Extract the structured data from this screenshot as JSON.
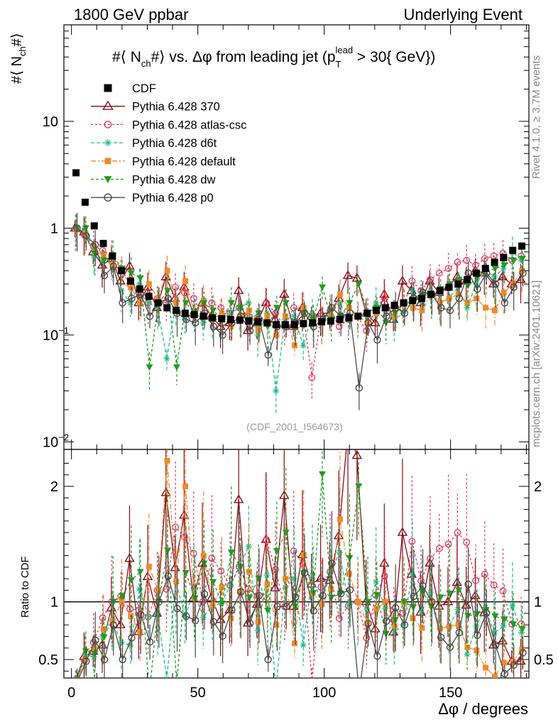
{
  "header": {
    "left": "1800 GeV ppbar",
    "right": "Underlying Event"
  },
  "side_labels": {
    "rivet": "Rivet 4.1.0, ≥ 3.7M events",
    "mcplots": "mcplots.cern.ch [arXiv:2401.10621]"
  },
  "watermark": "(CDF_2001_I564673)",
  "colors": {
    "cdf": "#000000",
    "p370": "#8b0a1c",
    "atlas": "#e8315b",
    "d6t": "#1fbf8f",
    "default": "#f08a2a",
    "dw": "#1f9e1f",
    "p0": "#4a4a4a"
  },
  "chart_data": [
    {
      "type": "line",
      "panel": "main",
      "title": "#⟨ N_ch#⟩ vs. Δφ from leading jet  (p_T^lead > 30{ GeV})",
      "title_parts": {
        "pre": "#⟨ N",
        "sub1": "ch",
        "mid": "#⟩ vs. Δφ from leading jet  (p",
        "sub2": "T",
        "sup2": "lead",
        "post": " > 30{ GeV})"
      },
      "ylabel": "#⟨ N_ch#⟩",
      "ylabel_parts": {
        "pre": "#⟨ N",
        "sub": "ch",
        "post": "#⟩"
      },
      "yscale": "log",
      "ylim": [
        0.0085,
        80
      ],
      "xlim": [
        -3,
        181
      ],
      "yticks": [
        {
          "v": 0.01,
          "label": "10",
          "exp": "−2"
        },
        {
          "v": 0.1,
          "label": "10",
          "exp": "−1"
        },
        {
          "v": 1,
          "label": "1",
          "exp": ""
        },
        {
          "v": 10,
          "label": "10",
          "exp": ""
        }
      ],
      "legend_position": "top-left",
      "x": [
        1.8,
        5.4,
        9.0,
        12.6,
        16.2,
        19.8,
        23.4,
        27.0,
        30.6,
        34.2,
        37.8,
        41.4,
        45.0,
        48.6,
        52.2,
        55.8,
        59.4,
        63.0,
        66.6,
        70.2,
        73.8,
        77.4,
        81.0,
        84.6,
        88.2,
        91.8,
        95.4,
        99.0,
        102.6,
        106.2,
        109.8,
        113.4,
        117.0,
        120.6,
        124.2,
        127.8,
        131.4,
        135.0,
        138.6,
        142.2,
        145.8,
        149.4,
        153.0,
        156.6,
        160.2,
        163.8,
        167.4,
        171.0,
        174.6,
        178.2
      ],
      "series": [
        {
          "name": "CDF",
          "key": "cdf",
          "marker": "square",
          "dash": "none",
          "values": [
            3.3,
            1.75,
            1.05,
            0.72,
            0.55,
            0.4,
            0.32,
            0.27,
            0.23,
            0.2,
            0.18,
            0.17,
            0.16,
            0.155,
            0.15,
            0.145,
            0.142,
            0.14,
            0.138,
            0.135,
            0.133,
            0.13,
            0.125,
            0.125,
            0.125,
            0.128,
            0.13,
            0.133,
            0.135,
            0.14,
            0.145,
            0.15,
            0.16,
            0.17,
            0.18,
            0.19,
            0.2,
            0.21,
            0.22,
            0.24,
            0.26,
            0.28,
            0.3,
            0.33,
            0.38,
            0.42,
            0.48,
            0.53,
            0.62,
            0.68
          ]
        },
        {
          "name": "Pythia 6.428 370",
          "key": "p370",
          "marker": "triangle",
          "dash": "none",
          "values": [
            1.0,
            0.92,
            0.6,
            0.45,
            0.52,
            0.32,
            0.44,
            0.2,
            0.28,
            0.18,
            0.35,
            0.22,
            0.28,
            0.16,
            0.2,
            0.15,
            0.12,
            0.13,
            0.26,
            0.11,
            0.13,
            0.2,
            0.14,
            0.24,
            0.12,
            0.18,
            0.15,
            0.16,
            0.16,
            0.22,
            0.36,
            0.34,
            0.16,
            0.13,
            0.24,
            0.14,
            0.32,
            0.26,
            0.2,
            0.32,
            0.25,
            0.28,
            0.35,
            0.32,
            0.4,
            0.38,
            0.3,
            0.35,
            0.3,
            0.33
          ]
        },
        {
          "name": "Pythia 6.428 atlas-csc",
          "key": "atlas",
          "marker": "circle",
          "dash": "3,3",
          "values": [
            0.98,
            0.86,
            0.68,
            0.62,
            0.55,
            0.42,
            0.3,
            0.25,
            0.2,
            0.22,
            0.2,
            0.28,
            0.25,
            0.22,
            0.15,
            0.2,
            0.18,
            0.16,
            0.18,
            0.15,
            0.14,
            0.2,
            0.16,
            0.12,
            0.18,
            0.17,
            0.04,
            0.15,
            0.17,
            0.12,
            0.14,
            0.15,
            0.11,
            0.18,
            0.22,
            0.16,
            0.18,
            0.32,
            0.26,
            0.33,
            0.38,
            0.42,
            0.48,
            0.5,
            0.45,
            0.52,
            0.55,
            0.58,
            0.5,
            0.55
          ]
        },
        {
          "name": "Pythia 6.428 d6t",
          "key": "d6t",
          "marker": "star",
          "dash": "5,3",
          "values": [
            0.98,
            0.95,
            0.55,
            0.5,
            0.46,
            0.26,
            0.2,
            0.3,
            0.2,
            0.18,
            0.06,
            0.2,
            0.14,
            0.17,
            0.13,
            0.14,
            0.14,
            0.16,
            0.18,
            0.2,
            0.1,
            0.16,
            0.03,
            0.14,
            0.15,
            0.08,
            0.16,
            0.13,
            0.17,
            0.2,
            0.14,
            0.15,
            0.15,
            0.2,
            0.17,
            0.14,
            0.16,
            0.26,
            0.2,
            0.26,
            0.2,
            0.22,
            0.28,
            0.18,
            0.3,
            0.4,
            0.35,
            0.42,
            0.6,
            0.5
          ]
        },
        {
          "name": "Pythia 6.428 default",
          "key": "default",
          "marker": "squarefill",
          "dash": "7,3,2,3",
          "values": [
            0.98,
            0.9,
            0.62,
            0.55,
            0.46,
            0.4,
            0.28,
            0.2,
            0.3,
            0.22,
            0.4,
            0.2,
            0.32,
            0.16,
            0.21,
            0.14,
            0.16,
            0.12,
            0.15,
            0.17,
            0.11,
            0.15,
            0.1,
            0.15,
            0.08,
            0.18,
            0.14,
            0.13,
            0.15,
            0.24,
            0.18,
            0.15,
            0.13,
            0.16,
            0.18,
            0.15,
            0.2,
            0.18,
            0.17,
            0.24,
            0.2,
            0.22,
            0.24,
            0.2,
            0.22,
            0.18,
            0.17,
            0.25,
            0.3,
            0.4
          ]
        },
        {
          "name": "Pythia 6.428 dw",
          "key": "dw",
          "marker": "triangledown",
          "dash": "4,3",
          "values": [
            1.0,
            1.0,
            0.58,
            0.5,
            0.55,
            0.42,
            0.38,
            0.34,
            0.05,
            0.2,
            0.26,
            0.05,
            0.2,
            0.16,
            0.2,
            0.17,
            0.14,
            0.2,
            0.18,
            0.14,
            0.16,
            0.12,
            0.18,
            0.2,
            0.12,
            0.16,
            0.14,
            0.28,
            0.14,
            0.15,
            0.2,
            0.3,
            0.16,
            0.18,
            0.13,
            0.16,
            0.2,
            0.2,
            0.24,
            0.23,
            0.27,
            0.3,
            0.33,
            0.29,
            0.34,
            0.39,
            0.42,
            0.45,
            0.5,
            0.52
          ]
        },
        {
          "name": "Pythia 6.428 p0",
          "key": "p0",
          "marker": "circleopen",
          "dash": "none",
          "values": [
            1.0,
            0.85,
            0.7,
            0.36,
            0.44,
            0.2,
            0.22,
            0.24,
            0.15,
            0.2,
            0.22,
            0.16,
            0.14,
            0.13,
            0.16,
            0.12,
            0.1,
            0.13,
            0.15,
            0.11,
            0.14,
            0.065,
            0.12,
            0.12,
            0.13,
            0.16,
            0.12,
            0.14,
            0.18,
            0.15,
            0.16,
            0.032,
            0.13,
            0.09,
            0.15,
            0.18,
            0.16,
            0.22,
            0.25,
            0.24,
            0.18,
            0.17,
            0.22,
            0.38,
            0.27,
            0.38,
            0.3,
            0.2,
            0.28,
            0.38
          ]
        }
      ]
    },
    {
      "type": "line",
      "panel": "ratio",
      "ylabel": "Ratio to CDF",
      "xlabel": "Δφ / degrees",
      "ylim": [
        0.34,
        2.32
      ],
      "xlim": [
        -3,
        181
      ],
      "yticks": [
        0.5,
        1,
        2
      ],
      "xticks": [
        0,
        50,
        100,
        150
      ],
      "reference_line": 1
    }
  ],
  "legend": [
    {
      "key": "cdf",
      "label": "CDF"
    },
    {
      "key": "p370",
      "label": "Pythia 6.428 370"
    },
    {
      "key": "atlas",
      "label": "Pythia 6.428 atlas-csc"
    },
    {
      "key": "d6t",
      "label": "Pythia 6.428 d6t"
    },
    {
      "key": "default",
      "label": "Pythia 6.428 default"
    },
    {
      "key": "dw",
      "label": "Pythia 6.428 dw"
    },
    {
      "key": "p0",
      "label": "Pythia 6.428 p0"
    }
  ]
}
